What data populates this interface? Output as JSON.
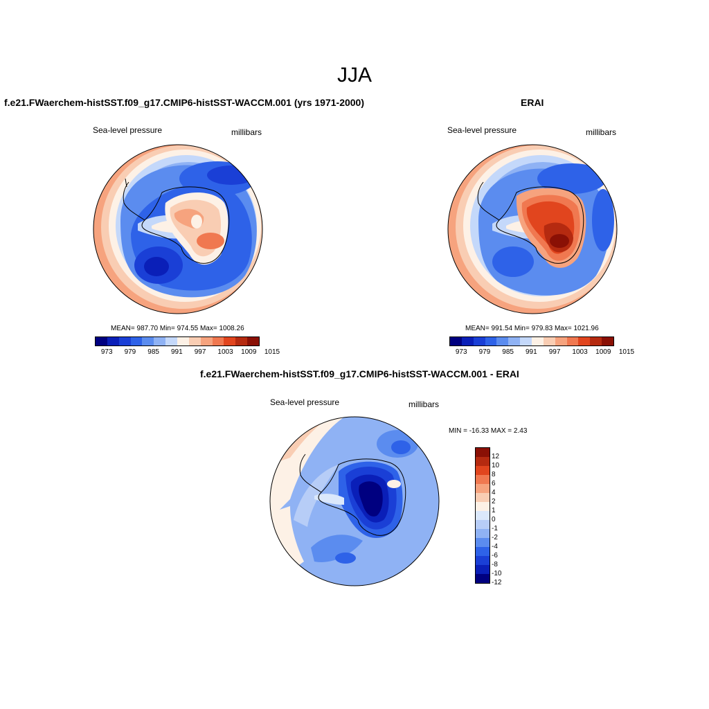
{
  "title": "JJA",
  "panels": {
    "model": {
      "title": "f.e21.FWaerchem-histSST.f09_g17.CMIP6-histSST-WACCM.001 (yrs 1971-2000)",
      "left_label": "Sea-level pressure",
      "right_label": "millibars",
      "stats": "MEAN= 987.70  Min= 974.55  Max= 1008.26"
    },
    "obs": {
      "title": "ERAI",
      "left_label": "Sea-level pressure",
      "right_label": "millibars",
      "stats": "MEAN= 991.54  Min= 979.83  Max= 1021.96"
    },
    "diff": {
      "title": "f.e21.FWaerchem-histSST.f09_g17.CMIP6-histSST-WACCM.001 - ERAI",
      "left_label": "Sea-level pressure",
      "right_label": "millibars",
      "stats": "MIN = -16.33 MAX =   2.43"
    }
  },
  "colorbar_abs": {
    "colors": [
      "#000080",
      "#0a1fb8",
      "#1a3fd6",
      "#2e62e8",
      "#5b8cef",
      "#8fb2f4",
      "#c4d8fa",
      "#fdf1e6",
      "#f9cdb3",
      "#f6a37e",
      "#f07850",
      "#e1451e",
      "#b52a10",
      "#8a1005"
    ],
    "labels": [
      "973",
      "979",
      "985",
      "991",
      "997",
      "1003",
      "1009",
      "1015"
    ]
  },
  "colorbar_diff": {
    "colors": [
      "#8a1005",
      "#b52a10",
      "#e1451e",
      "#f07850",
      "#f6a37e",
      "#f9cdb3",
      "#fdf1e6",
      "#dbe8fb",
      "#b7cdf7",
      "#8fb2f4",
      "#5b8cef",
      "#2e62e8",
      "#1a3fd6",
      "#0a1fb8",
      "#000080"
    ],
    "labels": [
      "12",
      "10",
      "8",
      "6",
      "4",
      "2",
      "1",
      "0",
      "-1",
      "-2",
      "-4",
      "-6",
      "-8",
      "-10",
      "-12"
    ]
  }
}
